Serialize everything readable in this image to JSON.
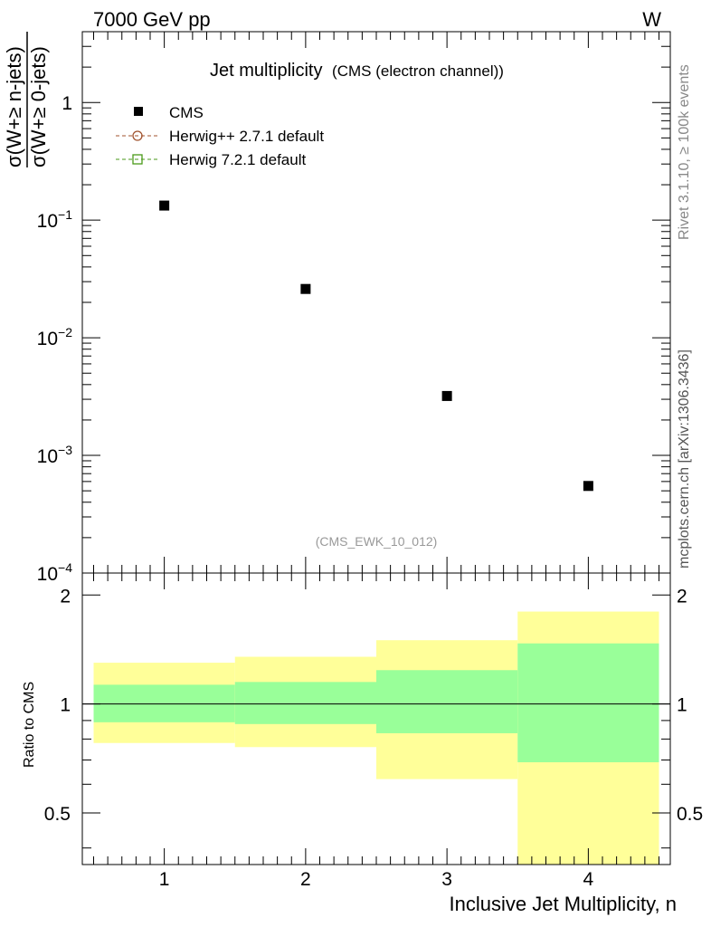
{
  "header": {
    "left": "7000 GeV pp",
    "right": "W"
  },
  "side_labels": {
    "rivet": "Rivet 3.1.10, ≥ 100k events",
    "mcplots": "mcplots.cern.ch [arXiv:1306.3436]"
  },
  "colors": {
    "data_marker": "#000000",
    "herwigpp": "#a0522d",
    "herwig7": "#4a9a1a",
    "band_inner": "#99ff99",
    "band_outer": "#ffff99",
    "watermark": "#999999"
  },
  "chart_data": [
    {
      "type": "scatter",
      "title": "Jet multiplicity",
      "subtitle": "(CMS (electron channel))",
      "ylabel_numerator": "σ(W+≥ n-jets)",
      "ylabel_denominator": "σ(W+≥ 0-jets)",
      "yscale": "log",
      "ylim": [
        0.0001,
        4
      ],
      "xlim": [
        0.42,
        4.58
      ],
      "ytick_labels": [
        {
          "mantissa": "10",
          "exp": "−4",
          "value": 0.0001
        },
        {
          "mantissa": "10",
          "exp": "−3",
          "value": 0.001
        },
        {
          "mantissa": "10",
          "exp": "−2",
          "value": 0.01
        },
        {
          "mantissa": "10",
          "exp": "−1",
          "value": 0.1
        },
        {
          "mantissa": "1",
          "exp": "",
          "value": 1
        }
      ],
      "series": [
        {
          "name": "CMS",
          "x": [
            1,
            2,
            3,
            4
          ],
          "y": [
            0.133,
            0.026,
            0.0032,
            0.00055
          ]
        }
      ],
      "legend": [
        {
          "label": "CMS",
          "style": "square"
        },
        {
          "label": "Herwig++ 2.7.1 default",
          "style": "circle"
        },
        {
          "label": "Herwig 7.2.1 default",
          "style": "open-square"
        }
      ],
      "legend_position": "top-left",
      "watermark": "(CMS_EWK_10_012)"
    },
    {
      "type": "area",
      "ylabel": "Ratio to CMS",
      "xlabel": "Inclusive Jet Multiplicity, n",
      "yscale": "log",
      "ylim": [
        0.36,
        2.3
      ],
      "xlim": [
        0.42,
        4.58
      ],
      "x_ticks": [
        "1",
        "2",
        "3",
        "4"
      ],
      "y_ticks": [
        "0.5",
        "1",
        "2"
      ],
      "reference_line": 1,
      "bins": [
        {
          "lo": 0.5,
          "hi": 1.5,
          "inner": [
            0.89,
            1.13
          ],
          "outer": [
            0.78,
            1.3
          ]
        },
        {
          "lo": 1.5,
          "hi": 2.5,
          "inner": [
            0.88,
            1.15
          ],
          "outer": [
            0.76,
            1.35
          ]
        },
        {
          "lo": 2.5,
          "hi": 3.5,
          "inner": [
            0.83,
            1.24
          ],
          "outer": [
            0.62,
            1.5
          ]
        },
        {
          "lo": 3.5,
          "hi": 4.5,
          "inner": [
            0.69,
            1.47
          ],
          "outer": [
            0.35,
            1.8
          ]
        }
      ]
    }
  ]
}
